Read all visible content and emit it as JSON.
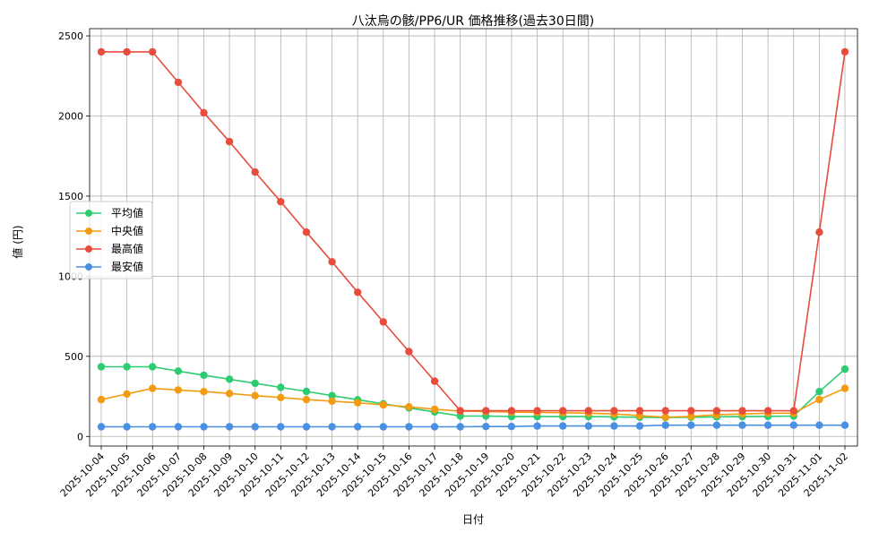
{
  "chart_data": {
    "type": "line",
    "title": "八汰烏の骸/PP6/UR 価格推移(過去30日間)",
    "xlabel": "日付",
    "ylabel": "値 (円)",
    "ylim": [
      -60,
      2545
    ],
    "yticks": [
      0,
      500,
      1000,
      1500,
      2000,
      2500
    ],
    "grid": true,
    "legend_position": "center-left",
    "categories": [
      "2025-10-04",
      "2025-10-05",
      "2025-10-06",
      "2025-10-07",
      "2025-10-08",
      "2025-10-09",
      "2025-10-10",
      "2025-10-11",
      "2025-10-12",
      "2025-10-13",
      "2025-10-14",
      "2025-10-15",
      "2025-10-16",
      "2025-10-17",
      "2025-10-18",
      "2025-10-19",
      "2025-10-20",
      "2025-10-21",
      "2025-10-22",
      "2025-10-23",
      "2025-10-24",
      "2025-10-25",
      "2025-10-26",
      "2025-10-27",
      "2025-10-28",
      "2025-10-29",
      "2025-10-30",
      "2025-10-31",
      "2025-11-01",
      "2025-11-02"
    ],
    "series": [
      {
        "name": "平均値",
        "color": "#2ecc71",
        "values": [
          435,
          435,
          435,
          408,
          382,
          357,
          332,
          306,
          281,
          255,
          229,
          204,
          178,
          153,
          127,
          127,
          124,
          124,
          124,
          124,
          122,
          120,
          118,
          120,
          122,
          124,
          125,
          127,
          280,
          420
        ]
      },
      {
        "name": "中央値",
        "color": "#f39c12",
        "values": [
          230,
          265,
          300,
          290,
          280,
          268,
          255,
          243,
          230,
          220,
          210,
          197,
          185,
          170,
          158,
          155,
          152,
          150,
          148,
          145,
          140,
          130,
          120,
          125,
          135,
          140,
          145,
          145,
          230,
          300
        ]
      },
      {
        "name": "最高値",
        "color": "#e74c3c",
        "values": [
          2400,
          2400,
          2400,
          2210,
          2020,
          1840,
          1650,
          1465,
          1275,
          1090,
          900,
          715,
          530,
          345,
          160,
          160,
          160,
          160,
          160,
          160,
          160,
          160,
          160,
          160,
          160,
          160,
          160,
          160,
          1275,
          2400
        ]
      },
      {
        "name": "最安値",
        "color": "#4a90e2",
        "values": [
          60,
          60,
          60,
          60,
          60,
          60,
          60,
          60,
          60,
          60,
          60,
          60,
          60,
          60,
          60,
          62,
          62,
          65,
          65,
          65,
          65,
          65,
          70,
          70,
          70,
          70,
          70,
          70,
          70,
          70
        ]
      }
    ]
  }
}
